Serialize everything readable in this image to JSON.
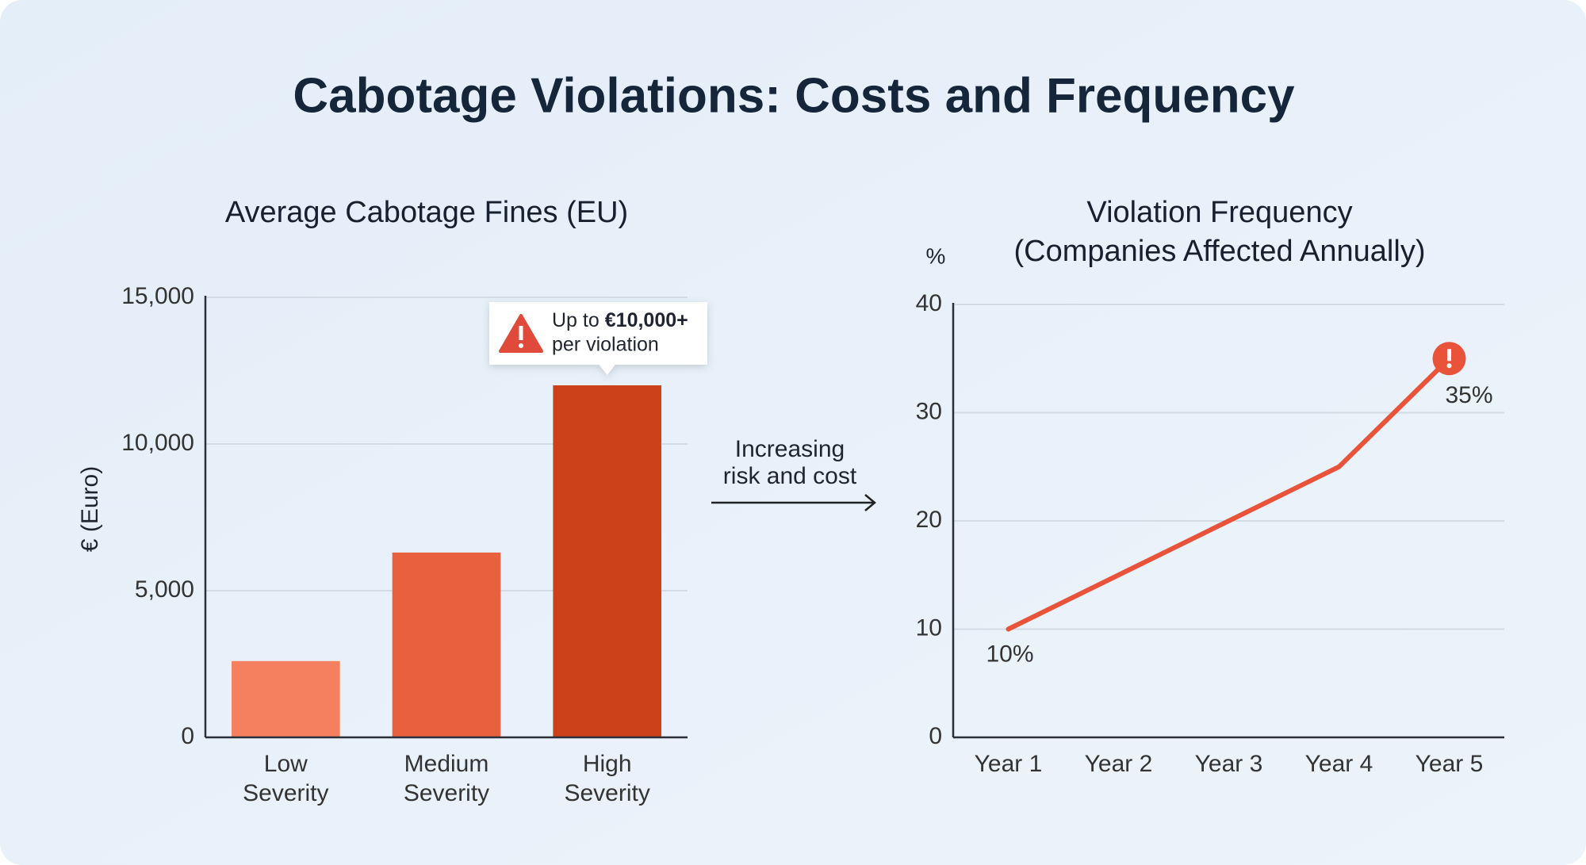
{
  "title": "Cabotage Violations: Costs and Frequency",
  "chart_data": [
    {
      "type": "bar",
      "title": "Average Cabotage Fines (EU)",
      "y_label": "€ (Euro)",
      "categories": [
        "Low Severity",
        "Medium Severity",
        "High Severity"
      ],
      "values": [
        2600,
        6300,
        12000
      ],
      "colors": [
        "#f4805f",
        "#e9603f",
        "#cc4119"
      ],
      "ylim": [
        0,
        15000
      ],
      "yticks": [
        0,
        {
          "value": 5000,
          "label": "5,000"
        },
        {
          "value": 10000,
          "label": "10,000"
        },
        {
          "value": 15000,
          "label": "15,000"
        }
      ],
      "grid": true,
      "callout": {
        "prefix": "Up to",
        "emphasis": "€10,000+",
        "line2": "per violation"
      }
    },
    {
      "type": "line",
      "title": [
        "Violation Frequency",
        "(Companies Affected Annually)"
      ],
      "y_unit": "%",
      "categories": [
        "Year 1",
        "Year 2",
        "Year 3",
        "Year 4",
        "Year 5"
      ],
      "values": [
        10,
        15,
        20,
        25,
        35
      ],
      "value_labels": [
        "10%",
        null,
        null,
        null,
        "35%"
      ],
      "color": "#e8533a",
      "ylim": [
        0,
        40
      ],
      "yticks": [
        0,
        10,
        20,
        30,
        40
      ],
      "grid": true
    }
  ],
  "annotation": [
    "Increasing",
    "risk and cost"
  ]
}
